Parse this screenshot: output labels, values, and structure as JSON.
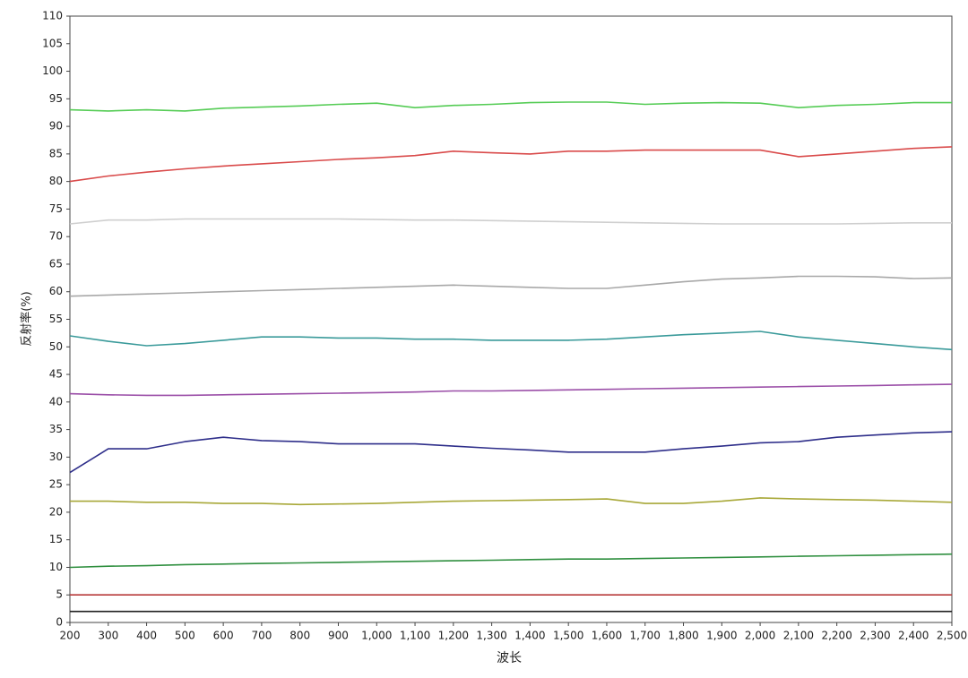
{
  "chart_data": {
    "type": "line",
    "xlabel": "波长",
    "ylabel": "反射率(%)",
    "x": [
      200,
      300,
      400,
      500,
      600,
      700,
      800,
      900,
      1000,
      1100,
      1200,
      1300,
      1400,
      1500,
      1600,
      1700,
      1800,
      1900,
      2000,
      2100,
      2200,
      2300,
      2400,
      2500
    ],
    "xlim": [
      200,
      2500
    ],
    "xticks": [
      200,
      300,
      400,
      500,
      600,
      700,
      800,
      900,
      {
        "value": 1000,
        "label": "1,000"
      },
      {
        "value": 1100,
        "label": "1,100"
      },
      {
        "value": 1200,
        "label": "1,200"
      },
      {
        "value": 1300,
        "label": "1,300"
      },
      {
        "value": 1400,
        "label": "1,400"
      },
      {
        "value": 1500,
        "label": "1,500"
      },
      {
        "value": 1600,
        "label": "1,600"
      },
      {
        "value": 1700,
        "label": "1,700"
      },
      {
        "value": 1800,
        "label": "1,800"
      },
      {
        "value": 1900,
        "label": "1,900"
      },
      {
        "value": 2000,
        "label": "2,000"
      },
      {
        "value": 2100,
        "label": "2,100"
      },
      {
        "value": 2200,
        "label": "2,200"
      },
      {
        "value": 2300,
        "label": "2,300"
      },
      {
        "value": 2400,
        "label": "2,400"
      },
      {
        "value": 2500,
        "label": "2,500"
      }
    ],
    "ylim": [
      0,
      110
    ],
    "yticks": [
      0,
      5,
      10,
      15,
      20,
      25,
      30,
      35,
      40,
      45,
      50,
      55,
      60,
      65,
      70,
      75,
      80,
      85,
      90,
      95,
      100,
      105,
      110
    ],
    "grid": false,
    "series": [
      {
        "color": "#55cc55",
        "values": [
          93,
          92.8,
          93,
          92.8,
          93.3,
          93.5,
          93.7,
          94,
          94.2,
          93.4,
          93.8,
          94,
          94.3,
          94.4,
          94.4,
          94,
          94.2,
          94.3,
          94.2,
          93.4,
          93.8,
          94,
          94.3,
          94.3
        ]
      },
      {
        "color": "#d94a4a",
        "values": [
          80,
          81,
          81.7,
          82.3,
          82.8,
          83.2,
          83.6,
          84,
          84.3,
          84.7,
          85.5,
          85.2,
          85,
          85.5,
          85.5,
          85.7,
          85.7,
          85.7,
          85.7,
          84.5,
          85,
          85.5,
          86,
          86.3
        ]
      },
      {
        "color": "#cfcfcf",
        "values": [
          72.3,
          73,
          73,
          73.2,
          73.2,
          73.2,
          73.2,
          73.2,
          73.1,
          73,
          73,
          72.9,
          72.8,
          72.7,
          72.6,
          72.5,
          72.4,
          72.3,
          72.3,
          72.3,
          72.3,
          72.4,
          72.5,
          72.5
        ]
      },
      {
        "color": "#a8a8a8",
        "values": [
          59.2,
          59.4,
          59.6,
          59.8,
          60,
          60.2,
          60.4,
          60.6,
          60.8,
          61,
          61.2,
          61,
          60.8,
          60.6,
          60.6,
          61.2,
          61.8,
          62.3,
          62.5,
          62.8,
          62.8,
          62.7,
          62.4,
          62.5
        ]
      },
      {
        "color": "#3a9a9a",
        "values": [
          52,
          51,
          50.2,
          50.6,
          51.2,
          51.8,
          51.8,
          51.6,
          51.6,
          51.4,
          51.4,
          51.2,
          51.2,
          51.2,
          51.4,
          51.8,
          52.2,
          52.5,
          52.8,
          51.8,
          51.2,
          50.6,
          50,
          49.5
        ]
      },
      {
        "color": "#9b4fa8",
        "values": [
          41.5,
          41.3,
          41.2,
          41.2,
          41.3,
          41.4,
          41.5,
          41.6,
          41.7,
          41.8,
          42,
          42,
          42.1,
          42.2,
          42.3,
          42.4,
          42.5,
          42.6,
          42.7,
          42.8,
          42.9,
          43,
          43.1,
          43.2
        ]
      },
      {
        "color": "#2e2e8a",
        "values": [
          27.2,
          31.5,
          31.5,
          32.8,
          33.6,
          33,
          32.8,
          32.4,
          32.4,
          32.4,
          32,
          31.6,
          31.3,
          30.9,
          30.9,
          30.9,
          31.5,
          32,
          32.6,
          32.8,
          33.6,
          34,
          34.4,
          34.6
        ]
      },
      {
        "color": "#a8a838",
        "values": [
          22,
          22,
          21.8,
          21.8,
          21.6,
          21.6,
          21.4,
          21.5,
          21.6,
          21.8,
          22,
          22.1,
          22.2,
          22.3,
          22.4,
          21.6,
          21.6,
          22,
          22.6,
          22.4,
          22.3,
          22.2,
          22,
          21.8
        ]
      },
      {
        "color": "#2f8f3f",
        "values": [
          10,
          10.2,
          10.3,
          10.5,
          10.6,
          10.7,
          10.8,
          10.9,
          11,
          11.1,
          11.2,
          11.3,
          11.4,
          11.5,
          11.5,
          11.6,
          11.7,
          11.8,
          11.9,
          12,
          12.1,
          12.2,
          12.3,
          12.4
        ]
      },
      {
        "color": "#b83a3a",
        "values": [
          5,
          5,
          5,
          5,
          5,
          5,
          5,
          5,
          5,
          5,
          5,
          5,
          5,
          5,
          5,
          5,
          5,
          5,
          5,
          5,
          5,
          5,
          5,
          5
        ]
      },
      {
        "color": "#222222",
        "values": [
          2,
          2,
          2,
          2,
          2,
          2,
          2,
          2,
          2,
          2,
          2,
          2,
          2,
          2,
          2,
          2,
          2,
          2,
          2,
          2,
          2,
          2,
          2,
          2
        ]
      }
    ]
  }
}
